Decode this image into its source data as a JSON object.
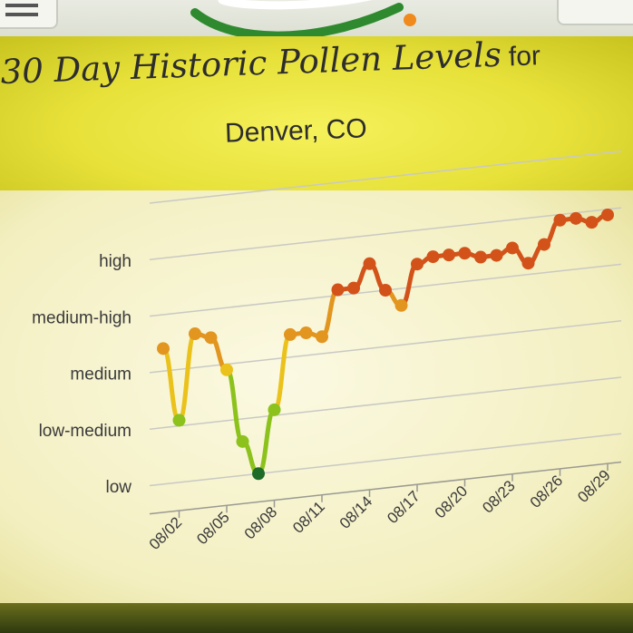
{
  "header": {
    "title_main": "30 Day Historic Pollen Levels",
    "title_for": "for",
    "city": "Denver, CO"
  },
  "colors": {
    "low": "#1d6b27",
    "low_medium": "#8cc21b",
    "medium": "#eac21b",
    "medium_high": "#e2951f",
    "high": "#d2521a",
    "gridline": "#c9c9c3",
    "title_band": "#e8e33b"
  },
  "chart_data": {
    "type": "line",
    "title": "30 Day Historic Pollen Levels for Denver, CO",
    "xlabel": "",
    "ylabel": "",
    "y_categories": [
      "low",
      "low-medium",
      "medium",
      "medium-high",
      "high"
    ],
    "ylim": [
      0,
      5
    ],
    "x_tick_labels": [
      "08/02",
      "08/05",
      "08/08",
      "08/11",
      "08/14",
      "08/17",
      "08/20",
      "08/23",
      "08/26",
      "08/29"
    ],
    "x": [
      "08/01",
      "08/02",
      "08/03",
      "08/04",
      "08/05",
      "08/06",
      "08/07",
      "08/08",
      "08/09",
      "08/10",
      "08/11",
      "08/12",
      "08/13",
      "08/14",
      "08/15",
      "08/16",
      "08/17",
      "08/18",
      "08/19",
      "08/20",
      "08/21",
      "08/22",
      "08/23",
      "08/24",
      "08/25",
      "08/26",
      "08/27",
      "08/28",
      "08/29"
    ],
    "values": [
      2.9,
      1.6,
      3.1,
      3.0,
      2.4,
      1.1,
      0.5,
      1.6,
      2.9,
      2.9,
      2.8,
      3.6,
      3.6,
      4.0,
      3.5,
      3.2,
      3.9,
      4.0,
      4.0,
      4.0,
      3.9,
      3.9,
      4.0,
      3.7,
      4.0,
      4.4,
      4.4,
      4.3,
      4.4
    ],
    "grid": true,
    "legend": "none"
  }
}
